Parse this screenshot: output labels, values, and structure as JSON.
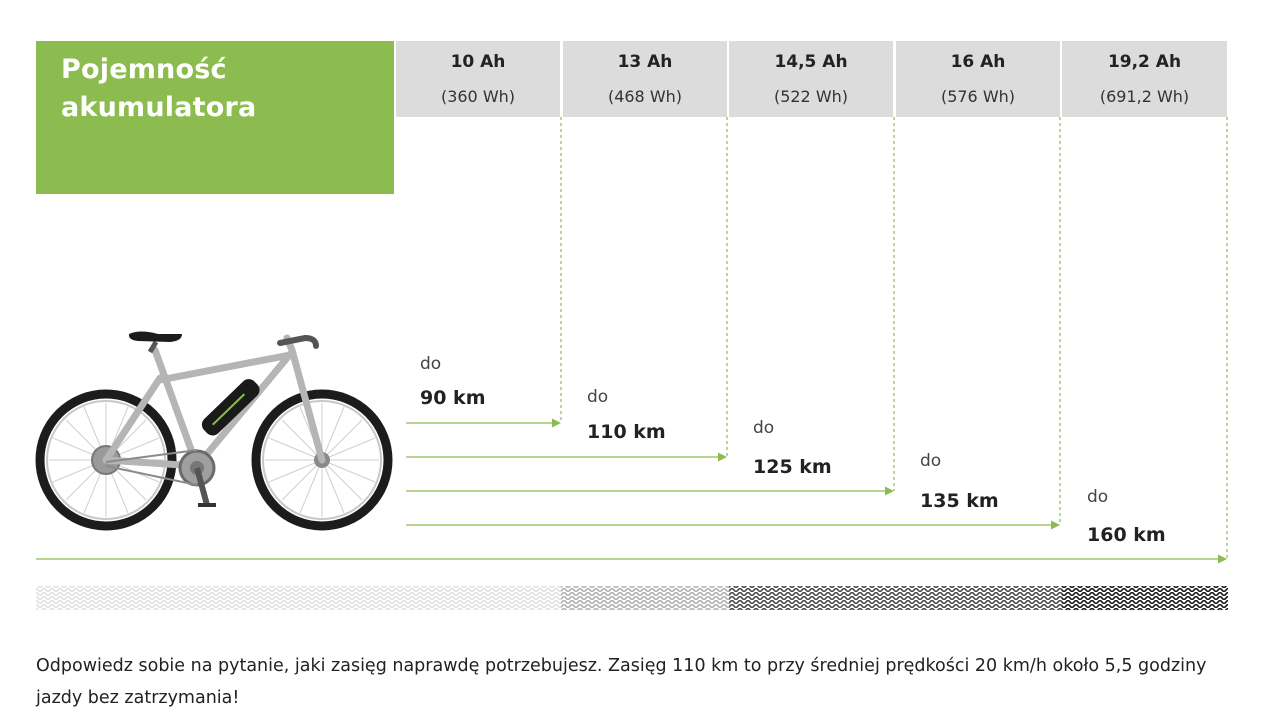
{
  "title_lines": [
    "Pojemność",
    "akumulatora"
  ],
  "range_prefix": "do",
  "chart_data": {
    "type": "bar",
    "title": "Pojemność akumulatora",
    "categories": [
      "10 Ah",
      "13 Ah",
      "14,5 Ah",
      "16 Ah",
      "19,2 Ah"
    ],
    "energy_labels": [
      "(360 Wh)",
      "(468 Wh)",
      "(522 Wh)",
      "(576 Wh)",
      "(691,2 Wh)"
    ],
    "values": [
      90,
      110,
      125,
      135,
      160
    ],
    "value_labels": [
      "90 km",
      "110 km",
      "125 km",
      "135 km",
      "160 km"
    ],
    "unit": "km"
  },
  "colors": {
    "accent": "#8cbc4f",
    "header_bg": "#dcdcdc",
    "text": "#222222"
  },
  "footer_text": "Odpowiedz sobie na pytanie, jaki zasięg naprawdę potrzebujesz. Zasięg 110 km to przy średniej prędkości 20 km/h około 5,5 godziny jazdy bez zatrzymania!"
}
